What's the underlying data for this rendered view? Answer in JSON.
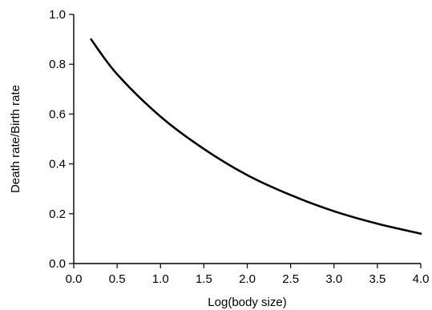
{
  "chart_data": {
    "type": "line",
    "title": "",
    "xlabel": "Log(body size)",
    "ylabel": "Death rate/Birth rate",
    "xlim": [
      0.0,
      4.0
    ],
    "ylim": [
      0.0,
      1.0
    ],
    "x_ticks": [
      "0.0",
      "0.5",
      "1.0",
      "1.5",
      "2.0",
      "2.5",
      "3.0",
      "3.5",
      "4.0"
    ],
    "y_ticks": [
      "0.0",
      "0.2",
      "0.4",
      "0.6",
      "0.8",
      "1.0"
    ],
    "grid": false,
    "legend": "none",
    "series": [
      {
        "color": "#000000",
        "x": [
          0.2,
          0.5,
          1.0,
          1.5,
          2.0,
          2.5,
          3.0,
          3.5,
          4.0
        ],
        "y": [
          0.9,
          0.76,
          0.59,
          0.46,
          0.355,
          0.275,
          0.21,
          0.16,
          0.12
        ]
      }
    ]
  }
}
